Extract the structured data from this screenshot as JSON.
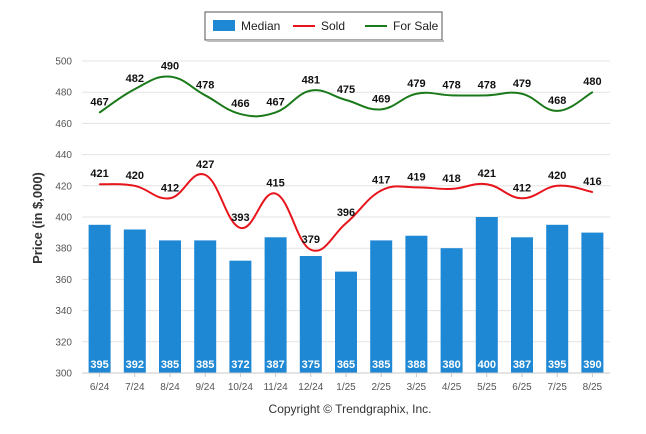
{
  "chart_data": {
    "type": "bar",
    "title": "",
    "ylabel": "Price (in $,000)",
    "xlabel": "",
    "ylim": [
      300,
      500
    ],
    "yticks": [
      300,
      320,
      340,
      360,
      380,
      400,
      420,
      440,
      460,
      480,
      500
    ],
    "grid": true,
    "legend_position": "top-center",
    "categories": [
      "6/24",
      "7/24",
      "8/24",
      "9/24",
      "10/24",
      "11/24",
      "12/24",
      "1/25",
      "2/25",
      "3/25",
      "4/25",
      "5/25",
      "6/25",
      "7/25",
      "8/25"
    ],
    "series": [
      {
        "name": "Median",
        "type": "bar",
        "color": "#1e88d4",
        "values": [
          395,
          392,
          385,
          385,
          372,
          387,
          375,
          365,
          385,
          388,
          380,
          400,
          387,
          395,
          390
        ]
      },
      {
        "name": "Sold",
        "type": "line",
        "color": "#e8141c",
        "values": [
          421,
          420,
          412,
          427,
          393,
          415,
          379,
          396,
          417,
          419,
          418,
          421,
          412,
          420,
          416
        ]
      },
      {
        "name": "For Sale",
        "type": "line",
        "color": "#1a7a1a",
        "values": [
          467,
          482,
          490,
          478,
          466,
          467,
          481,
          475,
          469,
          479,
          478,
          478,
          479,
          468,
          480
        ]
      }
    ],
    "footer": "Copyright © Trendgraphix, Inc."
  }
}
